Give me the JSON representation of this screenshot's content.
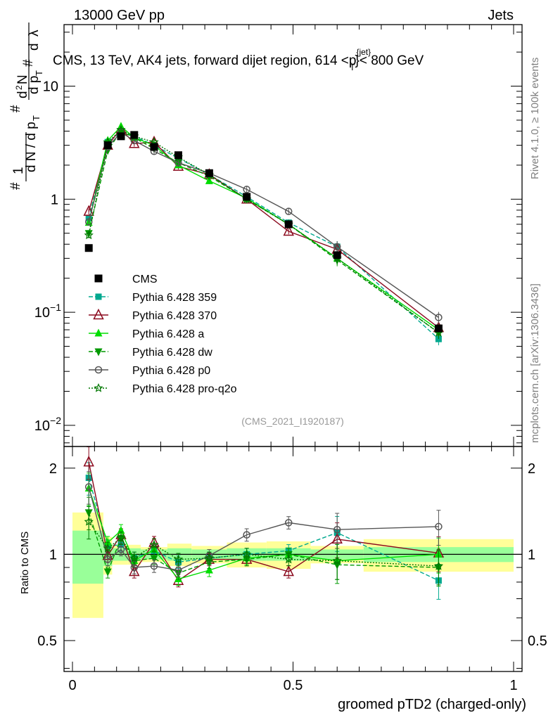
{
  "header": {
    "left": "13000 GeV pp",
    "right": "Jets",
    "title_main": "CMS, 13 TeV, AK4 jets, forward dijet region, 614 <p",
    "title_sup": "{jet}",
    "title_sub": "T",
    "title_end": "}< 800 GeV"
  },
  "side_texts": {
    "rivet": "Rivet 4.1.0, ≥ 100k events",
    "mcplots": "mcplots.cern.ch [arXiv:1306.3436]"
  },
  "watermark": "(CMS_2021_I1920187)",
  "chart_data": {
    "type": "line",
    "x_label": "groomed pTD2 (charged-only)",
    "y_label_main": "1/(dN/dpT) d²N/(dpT dλ)",
    "y_label_ratio": "Ratio to CMS",
    "x_range": [
      0,
      1
    ],
    "main_y_range": [
      0.0065,
      35
    ],
    "main_y_scale": "log",
    "ratio_y_range": [
      0.39,
      2.38
    ],
    "ratio_y_scale": "log",
    "x_ticks": [
      {
        "v": 0,
        "label": "0"
      },
      {
        "v": 0.5,
        "label": "0.5"
      },
      {
        "v": 1,
        "label": "1"
      }
    ],
    "main_major_ticks": [
      {
        "v": 0.01,
        "base": "10",
        "exp": "−2"
      },
      {
        "v": 0.1,
        "base": "10",
        "exp": "−1"
      },
      {
        "v": 1,
        "base": "1",
        "exp": ""
      },
      {
        "v": 10,
        "base": "10",
        "exp": ""
      }
    ],
    "ratio_ticks": [
      {
        "v": 0.5,
        "label": "0.5"
      },
      {
        "v": 1,
        "label": "1"
      },
      {
        "v": 2,
        "label": "2"
      }
    ],
    "data_series": {
      "name": "CMS",
      "color": "#000000",
      "x": [
        0.037,
        0.08,
        0.11,
        0.14,
        0.185,
        0.24,
        0.31,
        0.395,
        0.49,
        0.6,
        0.83
      ],
      "y": [
        0.37,
        3.0,
        3.6,
        3.7,
        2.9,
        2.45,
        1.7,
        1.05,
        0.6,
        0.32,
        0.072
      ],
      "band_edges": [
        0.0,
        0.07,
        0.09,
        0.125,
        0.155,
        0.215,
        0.27,
        0.35,
        0.44,
        0.54,
        0.66,
        1.0
      ],
      "band_inner": [
        0.21,
        0.09,
        0.05,
        0.05,
        0.04,
        0.05,
        0.04,
        0.05,
        0.05,
        0.04,
        0.06
      ],
      "band_outer": [
        0.4,
        0.15,
        0.08,
        0.08,
        0.06,
        0.09,
        0.07,
        0.1,
        0.11,
        0.07,
        0.13
      ]
    },
    "series": [
      {
        "name": "Pythia 6.428 359",
        "color": "#00a88f",
        "marker": "square",
        "dash": "6,3",
        "y": [
          0.68,
          3.2,
          3.9,
          3.6,
          3.0,
          2.3,
          1.65,
          1.05,
          0.62,
          0.38,
          0.058
        ],
        "ratio": [
          1.85,
          1.07,
          1.08,
          0.97,
          1.03,
          0.94,
          0.97,
          1.0,
          1.03,
          1.19,
          0.81
        ]
      },
      {
        "name": "Pythia 6.428 370",
        "color": "#8b0a1e",
        "marker": "triangle-open",
        "dash": "",
        "y": [
          0.78,
          3.0,
          4.2,
          3.1,
          3.2,
          1.95,
          1.65,
          1.0,
          0.52,
          0.36,
          0.073
        ],
        "ratio": [
          2.1,
          0.99,
          1.17,
          0.87,
          1.1,
          0.81,
          0.96,
          0.96,
          0.87,
          1.13,
          1.01
        ]
      },
      {
        "name": "Pythia 6.428 a",
        "color": "#00dd00",
        "marker": "triangle",
        "dash": "",
        "y": [
          0.62,
          3.3,
          4.4,
          3.5,
          3.0,
          2.0,
          1.45,
          1.02,
          0.6,
          0.3,
          0.07
        ],
        "ratio": [
          1.7,
          1.1,
          1.21,
          0.95,
          1.04,
          0.82,
          0.88,
          0.97,
          1.0,
          0.95,
          1.0
        ]
      },
      {
        "name": "Pythia 6.428 dw",
        "color": "#009900",
        "marker": "triangle-down",
        "dash": "6,3",
        "y": [
          0.5,
          2.7,
          4.0,
          3.5,
          2.8,
          2.1,
          1.6,
          1.0,
          0.6,
          0.29,
          0.066
        ],
        "ratio": [
          1.4,
          0.87,
          1.14,
          0.95,
          0.97,
          0.86,
          0.94,
          0.96,
          1.0,
          0.92,
          0.9
        ]
      },
      {
        "name": "Pythia 6.428 p0",
        "color": "#555555",
        "marker": "circle-open",
        "dash": "",
        "y": [
          0.63,
          2.9,
          3.9,
          3.3,
          2.65,
          2.1,
          1.7,
          1.22,
          0.78,
          0.38,
          0.09
        ],
        "ratio": [
          1.72,
          0.96,
          1.04,
          0.9,
          0.91,
          0.88,
          0.99,
          1.17,
          1.29,
          1.22,
          1.25
        ]
      },
      {
        "name": "Pythia 6.428 pro-q2o",
        "color": "#007700",
        "marker": "star",
        "dash": "2,2",
        "y": [
          0.48,
          3.2,
          4.1,
          3.6,
          3.2,
          2.35,
          1.65,
          1.0,
          0.6,
          0.3,
          0.066
        ],
        "ratio": [
          1.3,
          1.05,
          1.14,
          0.97,
          1.08,
          0.96,
          0.97,
          1.0,
          0.96,
          0.95,
          0.91
        ]
      }
    ]
  }
}
